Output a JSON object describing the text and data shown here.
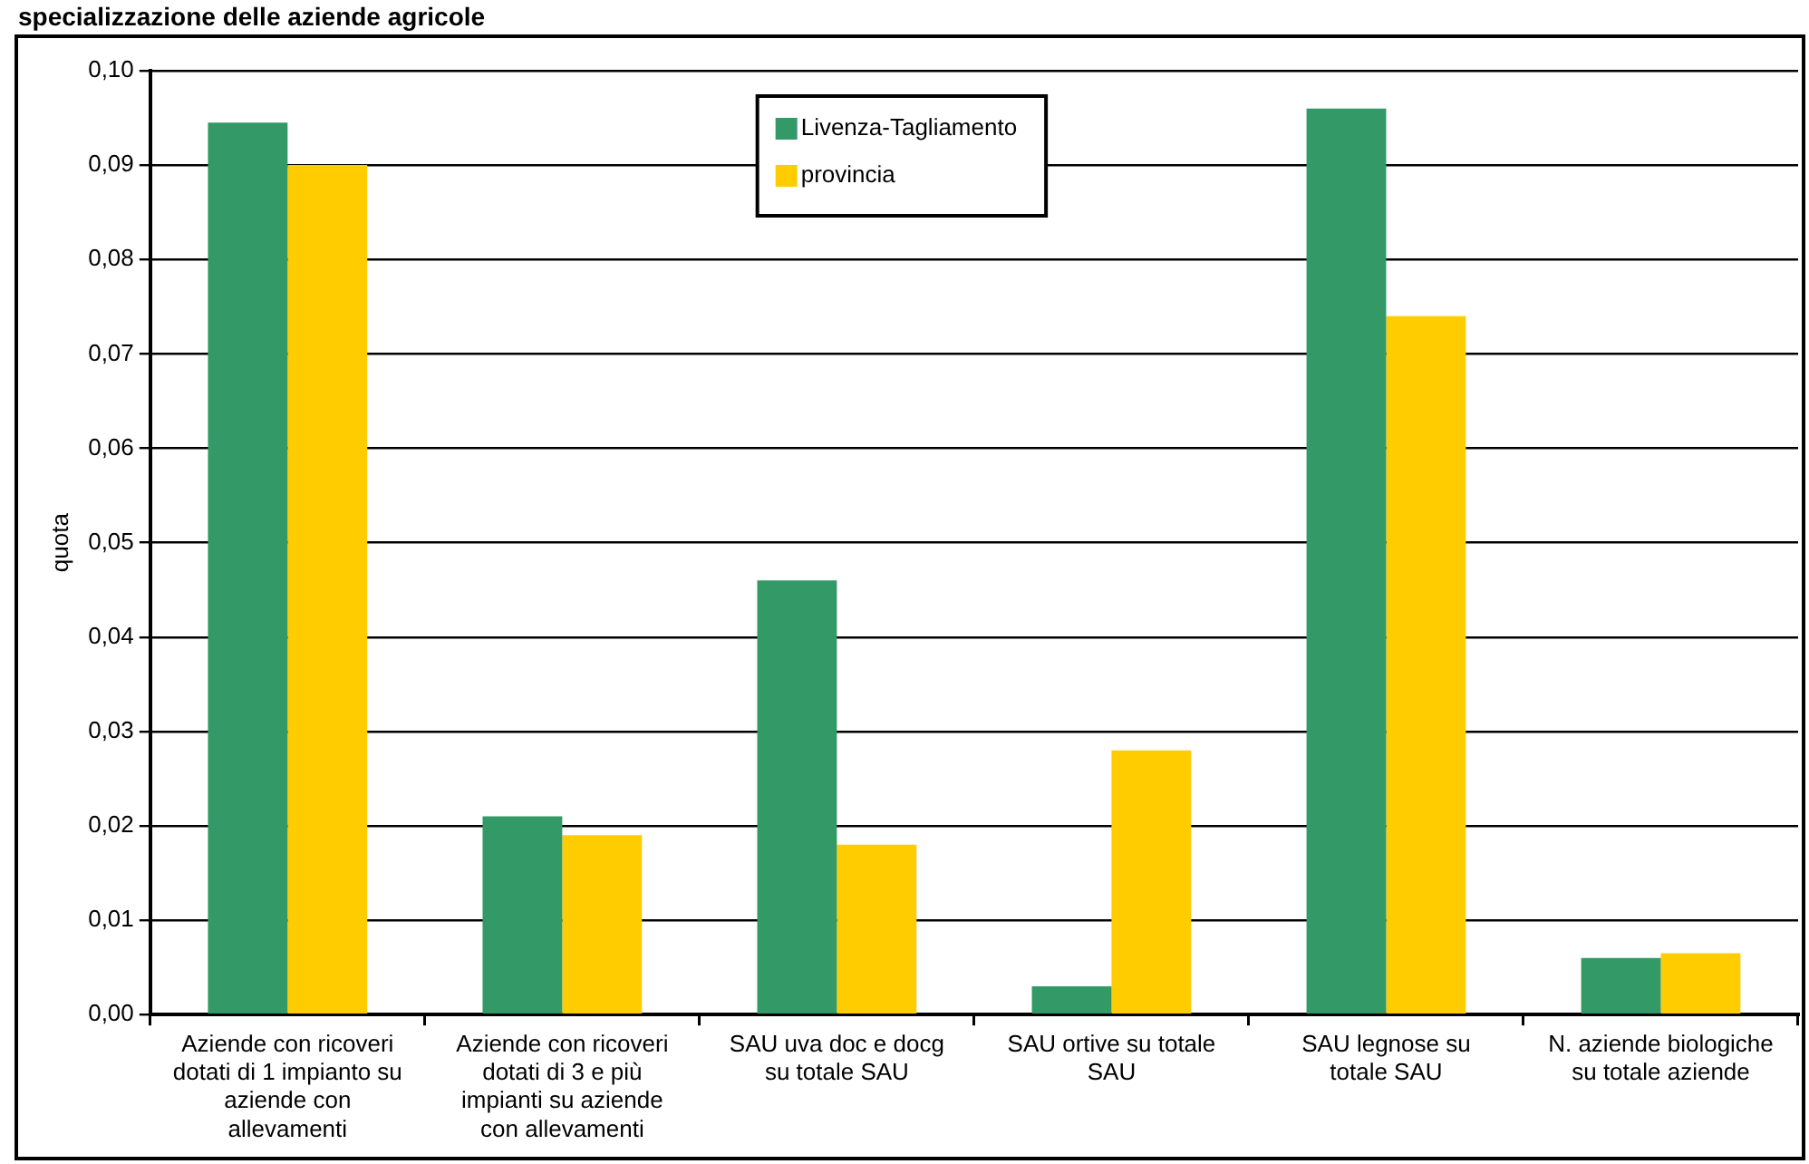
{
  "chart_data": {
    "type": "bar",
    "title": "specializzazione delle aziende agricole",
    "ylabel": "quota",
    "categories": [
      "Aziende con ricoveri dotati di 1 impianto su aziende con allevamenti",
      "Aziende con ricoveri dotati di 3 e più impianti su aziende con allevamenti",
      "SAU uva doc e docg su totale SAU",
      "SAU ortive su totale SAU",
      "SAU legnose su totale SAU",
      "N. aziende biologiche su totale aziende"
    ],
    "series": [
      {
        "name": "Livenza-Tagliamento",
        "color": "#339966",
        "values": [
          0.0945,
          0.021,
          0.046,
          0.003,
          0.096,
          0.006
        ]
      },
      {
        "name": "provincia",
        "color": "#ffcc00",
        "values": [
          0.09,
          0.019,
          0.018,
          0.028,
          0.074,
          0.0065
        ]
      }
    ],
    "ylim": [
      0,
      0.1
    ],
    "yticks": [
      {
        "value": 0,
        "label": "0,00"
      },
      {
        "value": 0.01,
        "label": "0,01"
      },
      {
        "value": 0.02,
        "label": "0,02"
      },
      {
        "value": 0.03,
        "label": "0,03"
      },
      {
        "value": 0.04,
        "label": "0,04"
      },
      {
        "value": 0.05,
        "label": "0,05"
      },
      {
        "value": 0.06,
        "label": "0,06"
      },
      {
        "value": 0.07,
        "label": "0,07"
      },
      {
        "value": 0.08,
        "label": "0,08"
      },
      {
        "value": 0.09,
        "label": "0,09"
      },
      {
        "value": 0.1,
        "label": "0,10"
      }
    ],
    "grid": "y",
    "legend": "top"
  }
}
